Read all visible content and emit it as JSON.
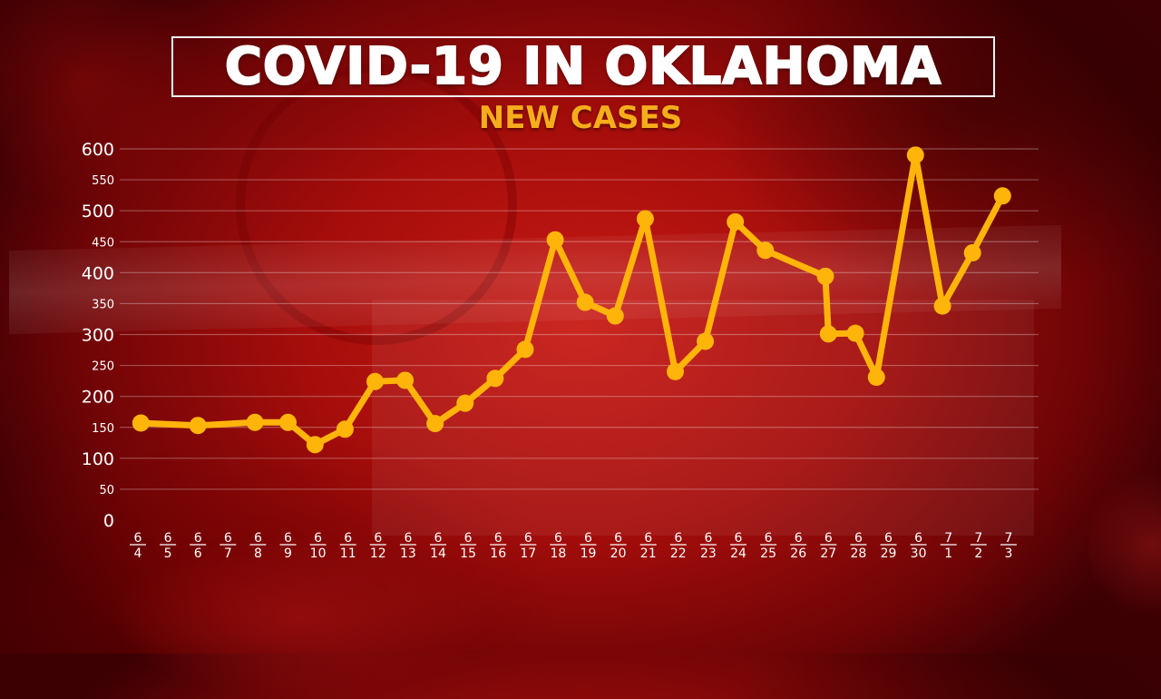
{
  "title": "COVID-19 IN OKLAHOMA",
  "subtitle": "NEW CASES",
  "colors": {
    "line": "#ffb40a",
    "title": "#ffffff",
    "subtitle": "#f5ad1b",
    "background": "#a40d0b",
    "axis_text": "#ffffff"
  },
  "chart_data": {
    "type": "line",
    "title": "COVID-19 IN OKLAHOMA",
    "subtitle": "NEW CASES",
    "xlabel": "",
    "ylabel": "",
    "ylim": [
      0,
      600
    ],
    "grid": true,
    "legend": "none",
    "y_ticks": [
      {
        "value": 0,
        "label": "0",
        "major": true
      },
      {
        "value": 50,
        "label": "50",
        "major": false
      },
      {
        "value": 100,
        "label": "100",
        "major": true
      },
      {
        "value": 150,
        "label": "150",
        "major": false
      },
      {
        "value": 200,
        "label": "200",
        "major": true
      },
      {
        "value": 250,
        "label": "250",
        "major": false
      },
      {
        "value": 300,
        "label": "300",
        "major": true
      },
      {
        "value": 350,
        "label": "350",
        "major": false
      },
      {
        "value": 400,
        "label": "400",
        "major": true
      },
      {
        "value": 450,
        "label": "450",
        "major": false
      },
      {
        "value": 500,
        "label": "500",
        "major": true
      },
      {
        "value": 550,
        "label": "550",
        "major": false
      },
      {
        "value": 600,
        "label": "600",
        "major": true
      }
    ],
    "categories": [
      {
        "month": "6",
        "day": "4"
      },
      {
        "month": "6",
        "day": "5"
      },
      {
        "month": "6",
        "day": "6"
      },
      {
        "month": "6",
        "day": "7"
      },
      {
        "month": "6",
        "day": "8"
      },
      {
        "month": "6",
        "day": "9"
      },
      {
        "month": "6",
        "day": "10"
      },
      {
        "month": "6",
        "day": "11"
      },
      {
        "month": "6",
        "day": "12"
      },
      {
        "month": "6",
        "day": "13"
      },
      {
        "month": "6",
        "day": "14"
      },
      {
        "month": "6",
        "day": "15"
      },
      {
        "month": "6",
        "day": "16"
      },
      {
        "month": "6",
        "day": "17"
      },
      {
        "month": "6",
        "day": "18"
      },
      {
        "month": "6",
        "day": "19"
      },
      {
        "month": "6",
        "day": "20"
      },
      {
        "month": "6",
        "day": "21"
      },
      {
        "month": "6",
        "day": "22"
      },
      {
        "month": "6",
        "day": "23"
      },
      {
        "month": "6",
        "day": "24"
      },
      {
        "month": "6",
        "day": "25"
      },
      {
        "month": "6",
        "day": "26"
      },
      {
        "month": "6",
        "day": "27"
      },
      {
        "month": "6",
        "day": "28"
      },
      {
        "month": "6",
        "day": "29"
      },
      {
        "month": "6",
        "day": "30"
      },
      {
        "month": "7",
        "day": "1"
      },
      {
        "month": "7",
        "day": "2"
      },
      {
        "month": "7",
        "day": "3"
      }
    ],
    "points": [
      {
        "x": 0.1,
        "y": 157
      },
      {
        "x": 2.0,
        "y": 153
      },
      {
        "x": 3.9,
        "y": 158
      },
      {
        "x": 5.0,
        "y": 158
      },
      {
        "x": 5.9,
        "y": 122
      },
      {
        "x": 6.9,
        "y": 147
      },
      {
        "x": 7.9,
        "y": 224
      },
      {
        "x": 8.9,
        "y": 226
      },
      {
        "x": 9.9,
        "y": 156
      },
      {
        "x": 10.9,
        "y": 189
      },
      {
        "x": 11.9,
        "y": 229
      },
      {
        "x": 12.9,
        "y": 276
      },
      {
        "x": 13.9,
        "y": 453
      },
      {
        "x": 14.9,
        "y": 352
      },
      {
        "x": 15.9,
        "y": 330
      },
      {
        "x": 16.9,
        "y": 487
      },
      {
        "x": 17.9,
        "y": 240
      },
      {
        "x": 18.9,
        "y": 289
      },
      {
        "x": 19.9,
        "y": 482
      },
      {
        "x": 20.9,
        "y": 436
      },
      {
        "x": 22.9,
        "y": 394
      },
      {
        "x": 23.0,
        "y": 301
      },
      {
        "x": 23.9,
        "y": 302
      },
      {
        "x": 24.6,
        "y": 231
      },
      {
        "x": 25.9,
        "y": 590
      },
      {
        "x": 26.8,
        "y": 346
      },
      {
        "x": 27.8,
        "y": 432
      },
      {
        "x": 28.8,
        "y": 524
      }
    ]
  }
}
